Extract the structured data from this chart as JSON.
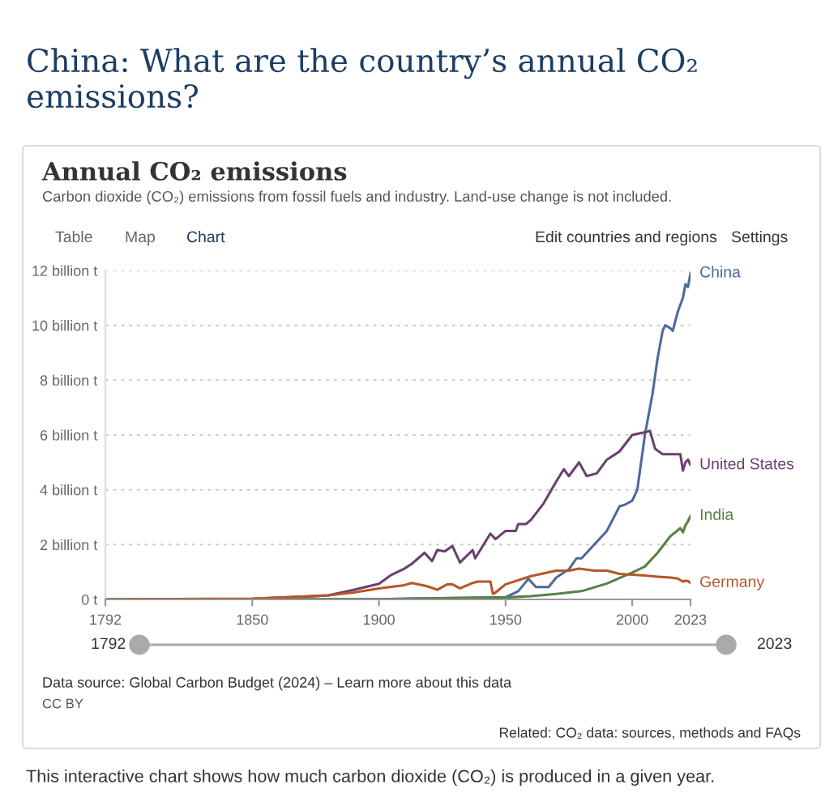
{
  "chart_data": {
    "type": "line",
    "title": "Annual CO₂ emissions",
    "subtitle": "Carbon dioxide (CO₂) emissions from fossil fuels and industry. Land-use change is not included.",
    "annotations": [
      "China: What are the country’s annual CO₂ emissions?",
      "Table",
      "Map",
      "Chart",
      "Edit countries and regions",
      "Settings",
      "1792",
      "2023",
      "Data source: Global Carbon Budget (2024) – Learn more about this data",
      "CC BY",
      "Related: CO₂ data: sources, methods and FAQs",
      "This interactive chart shows how much carbon dioxide (CO₂) is produced in a given year."
    ],
    "xlim": [
      1792,
      2023
    ],
    "xticks": [
      1792,
      1850,
      1900,
      1950,
      2000,
      2023
    ],
    "ylim": [
      0,
      12
    ],
    "yticks": [
      {
        "value": 0,
        "label": "0 t"
      },
      {
        "value": 2,
        "label": "2 billion t"
      },
      {
        "value": 4,
        "label": "4 billion t"
      },
      {
        "value": 6,
        "label": "6 billion t"
      },
      {
        "value": 8,
        "label": "8 billion t"
      },
      {
        "value": 10,
        "label": "10 billion t"
      },
      {
        "value": 12,
        "label": "12 billion t"
      }
    ],
    "grid": "y",
    "legend": false,
    "marker": "none",
    "line_style": "solid",
    "series": [
      {
        "name": "China",
        "color": "#4c6a9c",
        "x": [
          1792,
          1900,
          1950,
          1955,
          1959,
          1962,
          1967,
          1970,
          1975,
          1978,
          1980,
          1985,
          1990,
          1995,
          1997,
          2000,
          2002,
          2005,
          2008,
          2010,
          2012,
          2013,
          2015,
          2016,
          2018,
          2020,
          2021,
          2022,
          2023
        ],
        "values": [
          0,
          0.01,
          0.08,
          0.3,
          0.75,
          0.45,
          0.45,
          0.8,
          1.1,
          1.5,
          1.5,
          2.0,
          2.5,
          3.4,
          3.45,
          3.6,
          4.0,
          6.0,
          7.5,
          8.8,
          9.8,
          10.0,
          9.9,
          9.8,
          10.5,
          11.0,
          11.5,
          11.4,
          11.9
        ]
      },
      {
        "name": "United States",
        "color": "#6b3f6e",
        "x": [
          1800,
          1850,
          1870,
          1880,
          1890,
          1900,
          1905,
          1910,
          1913,
          1918,
          1921,
          1923,
          1926,
          1929,
          1932,
          1937,
          1938,
          1944,
          1946,
          1950,
          1954,
          1955,
          1958,
          1960,
          1965,
          1970,
          1973,
          1975,
          1979,
          1982,
          1986,
          1990,
          1995,
          2000,
          2005,
          2007,
          2009,
          2012,
          2015,
          2019,
          2020,
          2021,
          2022,
          2023
        ],
        "values": [
          0,
          0.02,
          0.1,
          0.15,
          0.35,
          0.57,
          0.9,
          1.12,
          1.3,
          1.7,
          1.4,
          1.8,
          1.75,
          1.95,
          1.35,
          1.8,
          1.5,
          2.4,
          2.2,
          2.5,
          2.5,
          2.75,
          2.75,
          2.9,
          3.5,
          4.3,
          4.75,
          4.5,
          5.0,
          4.5,
          4.6,
          5.1,
          5.4,
          6.0,
          6.1,
          6.15,
          5.5,
          5.3,
          5.3,
          5.3,
          4.7,
          5.0,
          5.1,
          4.9
        ]
      },
      {
        "name": "India",
        "color": "#578145",
        "x": [
          1792,
          1900,
          1950,
          1960,
          1970,
          1980,
          1990,
          2000,
          2005,
          2010,
          2015,
          2019,
          2020,
          2021,
          2022,
          2023
        ],
        "values": [
          0,
          0.01,
          0.07,
          0.12,
          0.2,
          0.3,
          0.58,
          0.98,
          1.2,
          1.7,
          2.3,
          2.6,
          2.45,
          2.7,
          2.85,
          3.05
        ]
      },
      {
        "name": "Germany",
        "color": "#b5572a",
        "x": [
          1792,
          1850,
          1870,
          1880,
          1890,
          1900,
          1910,
          1913,
          1918,
          1920,
          1923,
          1927,
          1929,
          1932,
          1937,
          1939,
          1944,
          1945,
          1946,
          1950,
          1960,
          1970,
          1975,
          1979,
          1985,
          1990,
          1995,
          2000,
          2005,
          2010,
          2015,
          2018,
          2020,
          2021,
          2022,
          2023
        ],
        "values": [
          0,
          0.03,
          0.1,
          0.15,
          0.25,
          0.4,
          0.52,
          0.6,
          0.5,
          0.45,
          0.35,
          0.55,
          0.55,
          0.4,
          0.6,
          0.65,
          0.65,
          0.2,
          0.25,
          0.55,
          0.85,
          1.05,
          1.05,
          1.12,
          1.05,
          1.05,
          0.93,
          0.9,
          0.87,
          0.83,
          0.8,
          0.76,
          0.65,
          0.68,
          0.67,
          0.6
        ]
      }
    ]
  }
}
